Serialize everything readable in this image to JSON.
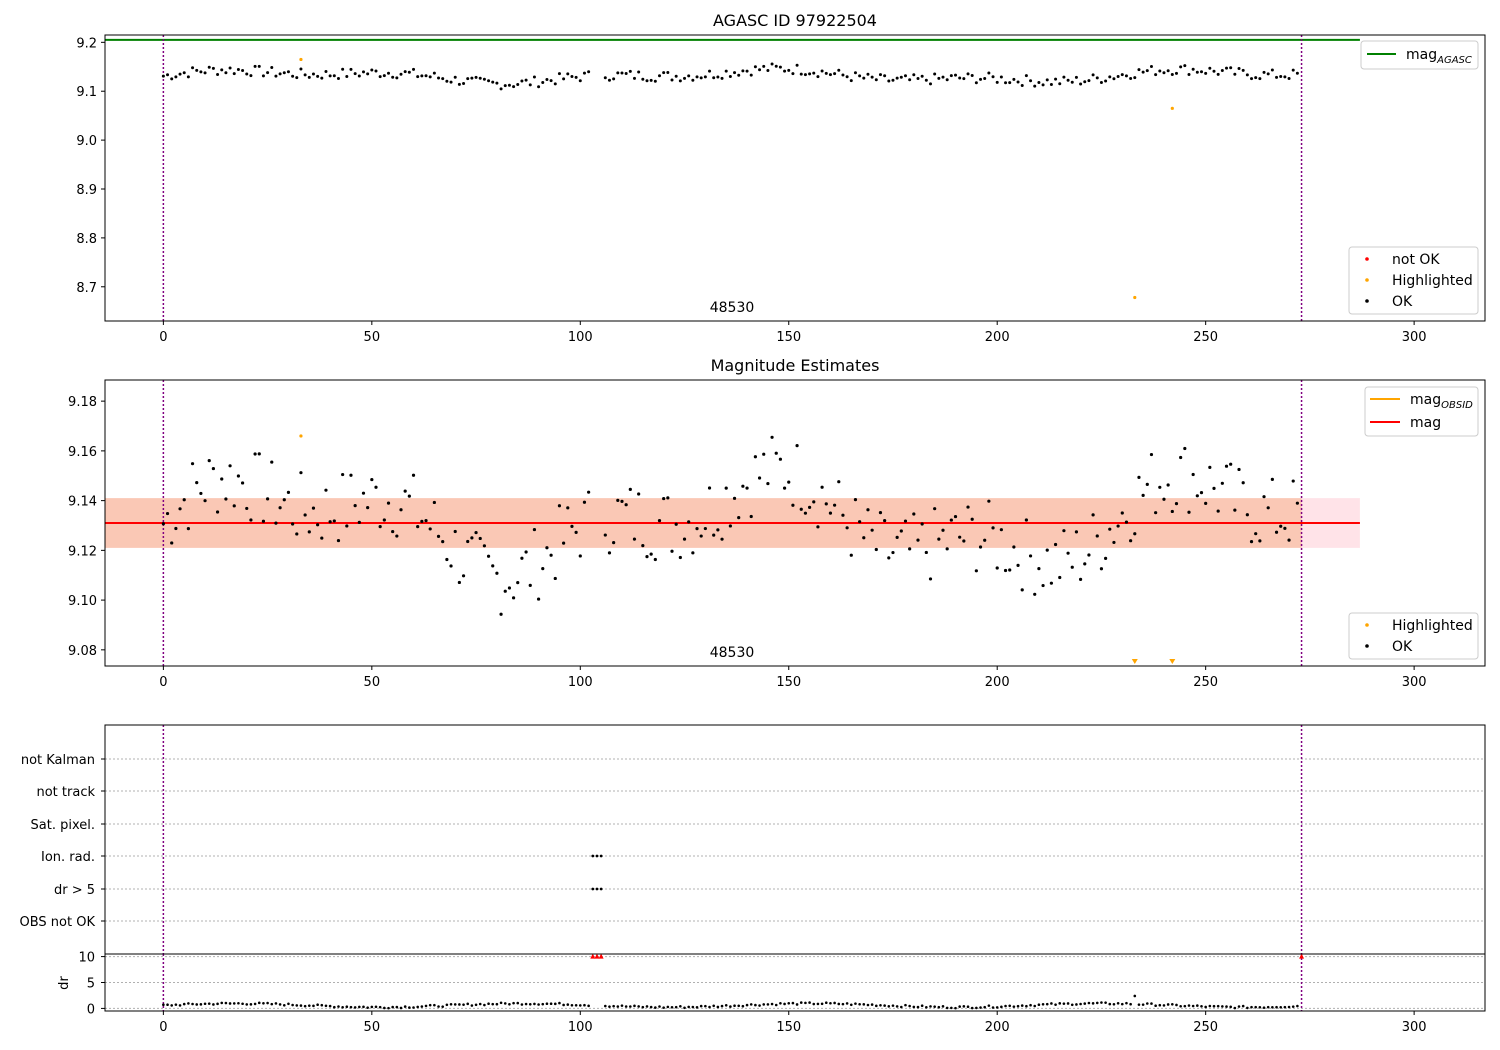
{
  "chart_data": [
    {
      "id": "agasc",
      "type": "scatter",
      "title": "AGASC ID 97922504",
      "xlim": [
        -14,
        317
      ],
      "ylim": [
        8.63,
        9.215
      ],
      "xticks": [
        0,
        50,
        100,
        150,
        200,
        250,
        300
      ],
      "yticks": [
        8.7,
        8.8,
        8.9,
        9.0,
        9.1,
        9.2
      ],
      "ytick_labels": [
        "8.7",
        "8.8",
        "8.9",
        "9.0",
        "9.1",
        "9.2"
      ],
      "obsid_label": "48530",
      "obsid_label_x": 136,
      "boundaries": [
        0,
        273
      ],
      "reference_line": {
        "y": 9.205,
        "x_range": [
          -14,
          287
        ],
        "color": "#008000"
      },
      "highlighted_points": [
        {
          "x": 33,
          "y": 9.165
        },
        {
          "x": 242,
          "y": 9.065
        },
        {
          "x": 233,
          "y": 8.678
        }
      ],
      "legends": [
        {
          "position": "upper-right",
          "entries": [
            {
              "label": "mag",
              "sub": "AGASC",
              "color": "#008000",
              "marker": "line"
            }
          ]
        },
        {
          "position": "lower-right",
          "entries": [
            {
              "label": "not OK",
              "color": "#ff0000",
              "marker": "dot"
            },
            {
              "label": "Highlighted",
              "color": "#ffa500",
              "marker": "dot"
            },
            {
              "label": "OK",
              "color": "#000000",
              "marker": "dot"
            }
          ]
        }
      ]
    },
    {
      "id": "mag_estimates",
      "type": "scatter",
      "title": "Magnitude Estimates",
      "xlim": [
        -14,
        317
      ],
      "ylim": [
        9.0735,
        9.1885
      ],
      "xticks": [
        0,
        50,
        100,
        150,
        200,
        250,
        300
      ],
      "yticks": [
        9.08,
        9.1,
        9.12,
        9.14,
        9.16,
        9.18
      ],
      "ytick_labels": [
        "9.08",
        "9.10",
        "9.12",
        "9.14",
        "9.16",
        "9.18"
      ],
      "obsid_label": "48530",
      "obsid_label_x": 136,
      "boundaries": [
        0,
        273
      ],
      "mean_line": {
        "y": 9.131,
        "color": "#ff0000"
      },
      "band_outer": {
        "y_low": 9.121,
        "y_high": 9.141,
        "x_range": [
          -14,
          287
        ],
        "color": "#ffc0cb"
      },
      "band_inner": {
        "y_low": 9.121,
        "y_high": 9.141,
        "x_range": [
          -14,
          273
        ],
        "color": "#f5b38a"
      },
      "highlighted_points": [
        {
          "x": 33,
          "y": 9.166
        }
      ],
      "offscale_markers": [
        {
          "x": 233
        },
        {
          "x": 242
        }
      ],
      "legends": [
        {
          "position": "upper-right",
          "entries": [
            {
              "label": "mag",
              "sub": "OBSID",
              "color": "#ffa500",
              "marker": "line"
            },
            {
              "label": "mag",
              "sub": "",
              "color": "#ff0000",
              "marker": "line"
            }
          ]
        },
        {
          "position": "lower-right",
          "entries": [
            {
              "label": "Highlighted",
              "color": "#ffa500",
              "marker": "dot"
            },
            {
              "label": "OK",
              "color": "#000000",
              "marker": "dot"
            }
          ]
        }
      ]
    },
    {
      "id": "flags",
      "type": "scatter",
      "title": "",
      "xlim": [
        -14,
        317
      ],
      "categories": [
        "not Kalman",
        "not track",
        "Sat. pixel.",
        "Ion. rad.",
        "dr > 5",
        "OBS not OK"
      ],
      "flagged_x": {
        "Ion. rad.": [
          103,
          104,
          105
        ],
        "dr > 5": [
          103,
          104,
          105
        ]
      },
      "boundaries": [
        0,
        273
      ]
    },
    {
      "id": "dr",
      "type": "scatter",
      "ylabel": "dr",
      "xlim": [
        -14,
        317
      ],
      "ylim": [
        -0.5,
        10.5
      ],
      "xticks": [
        0,
        50,
        100,
        150,
        200,
        250,
        300
      ],
      "yticks": [
        0,
        5,
        10
      ],
      "ytick_labels": [
        "0",
        "5",
        "10"
      ],
      "boundaries": [
        0,
        273
      ],
      "flag_markers": [
        {
          "x": 103,
          "y": 10
        },
        {
          "x": 104,
          "y": 10
        },
        {
          "x": 105,
          "y": 10
        },
        {
          "x": 273,
          "y": 10
        }
      ],
      "spike": {
        "x": 233,
        "y": 2.4
      }
    }
  ]
}
